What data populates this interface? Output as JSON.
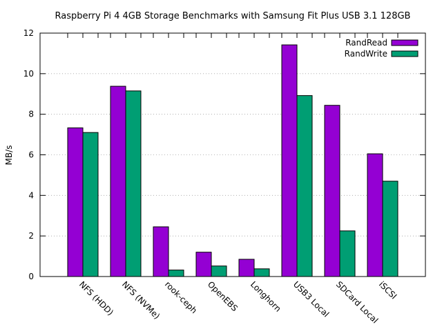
{
  "chart_data": {
    "type": "bar",
    "title": "Raspberry Pi 4 4GB Storage Benchmarks with Samsung Fit Plus USB 3.1 128GB",
    "xlabel": "",
    "ylabel": "MB/s",
    "ylim": [
      0,
      12
    ],
    "yticks": [
      0,
      2,
      4,
      6,
      8,
      10,
      12
    ],
    "grid": true,
    "legend_position": "top-right",
    "categories": [
      "NFS (HDD)",
      "NFS (NVMe)",
      "rook-ceph",
      "OpenEBS",
      "Longhorn",
      "USB3 Local",
      "SDCard Local",
      "iSCSI"
    ],
    "series": [
      {
        "name": "RandRead",
        "color": "#9400d3",
        "values": [
          7.33,
          9.38,
          2.45,
          1.2,
          0.85,
          11.42,
          8.44,
          6.05
        ]
      },
      {
        "name": "RandWrite",
        "color": "#009e73",
        "values": [
          7.1,
          9.15,
          0.32,
          0.52,
          0.38,
          8.92,
          2.25,
          4.7
        ]
      }
    ]
  }
}
